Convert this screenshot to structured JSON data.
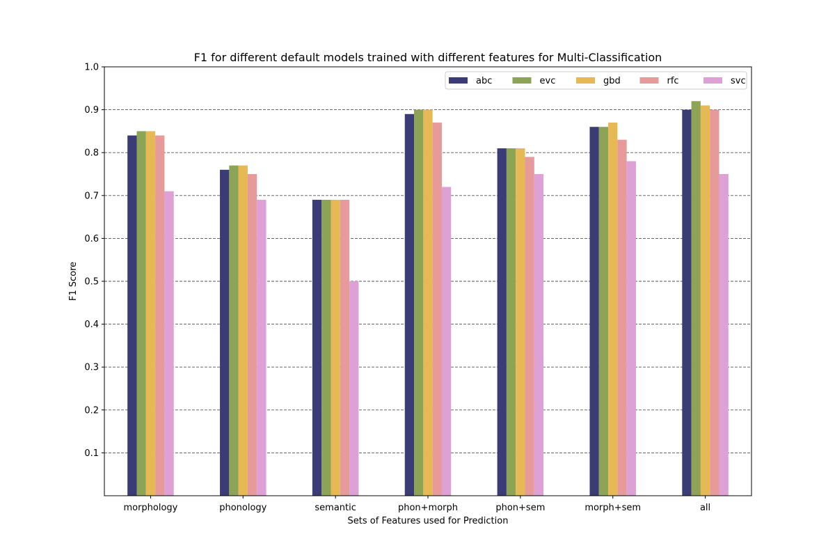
{
  "chart_data": {
    "type": "bar",
    "title": "F1 for different default models trained with different features for Multi-Classification",
    "xlabel": "Sets of Features used for Prediction",
    "ylabel": "F1 Score",
    "categories": [
      "morphology",
      "phonology",
      "semantic",
      "phon+morph",
      "phon+sem",
      "morph+sem",
      "all"
    ],
    "ylim": [
      0.0,
      1.0
    ],
    "yticks": [
      "0.1",
      "0.2",
      "0.3",
      "0.4",
      "0.5",
      "0.6",
      "0.7",
      "0.8",
      "0.9",
      "1.0"
    ],
    "grid": "horizontal dashed",
    "legend_position": "top-right",
    "series": [
      {
        "name": "abc",
        "color": "#3b3b75",
        "values": [
          0.84,
          0.76,
          0.69,
          0.89,
          0.81,
          0.86,
          0.9
        ]
      },
      {
        "name": "evc",
        "color": "#8da355",
        "values": [
          0.85,
          0.77,
          0.69,
          0.9,
          0.81,
          0.86,
          0.92
        ]
      },
      {
        "name": "gbd",
        "color": "#e6b955",
        "values": [
          0.85,
          0.77,
          0.69,
          0.9,
          0.81,
          0.87,
          0.91
        ]
      },
      {
        "name": "rfc",
        "color": "#e69a9a",
        "values": [
          0.84,
          0.75,
          0.69,
          0.87,
          0.79,
          0.83,
          0.9
        ]
      },
      {
        "name": "svc",
        "color": "#dda1d6",
        "values": [
          0.71,
          0.69,
          0.5,
          0.72,
          0.75,
          0.78,
          0.75
        ]
      }
    ]
  }
}
